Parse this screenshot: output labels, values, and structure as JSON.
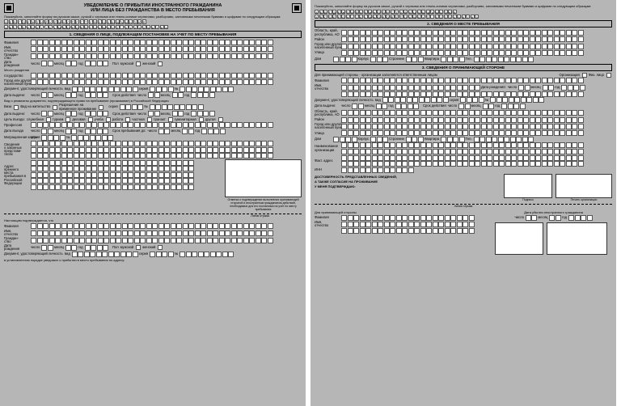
{
  "colors": {
    "page_bg": "#b6b6b6",
    "cell_bg": "#ffffff",
    "text": "#000000",
    "border": "#333333"
  },
  "page1": {
    "title_l1": "УВЕДОМЛЕНИЕ О ПРИБЫТИИ ИНОСТРАННОГО ГРАЖДАНИНА",
    "title_l2": "ИЛИ ЛИЦА БЕЗ ГРАЖДАНСТВА В МЕСТО ПРЕБЫВАНИЯ",
    "instr": "Пожалуйста, заполняйте форму на русском языке, ручкой с черными или темно-синими чернилами, разборчиво, заглавными печатными буквами и цифрами по следующим образцам:",
    "alphabet": "АБВГДЕЖЗИЙКЛМНОПРСТУФХЦЧШЩЪЫЬЭЮЯ",
    "alphabet2": "ABCDEFGHIJKLMNOPQRSTUVWXYZ 0123456789",
    "sec1": "1. СВЕДЕНИЯ О ЛИЦЕ, ПОДЛЕЖАЩЕМ ПОСТАНОВКЕ НА УЧЕТ ПО МЕСТУ ПРЕБЫВАНИЯ",
    "lbl": {
      "fam": "Фамилия",
      "name": "Имя,",
      "patr": "отчество",
      "citizen": "Граждан-",
      "citizen2": "ство",
      "bdate": "Дата",
      "bdate2": "рождения",
      "num": "число",
      "mon": "месяц",
      "year": "год",
      "sex": "Пол",
      "m": "мужской",
      "f": "женский",
      "bplace": "Место рождения",
      "country": "государство",
      "city": "Город или другой",
      "city2": "населенный пункт",
      "doc": "Документ, удостоверяющий личность",
      "vid": "вид",
      "ser": "серия",
      "no": "№",
      "issued": "Дата выдачи:",
      "valid": "Срок действия",
      "sec_doc": "Вид и реквизиты документа, подтверждающего право на пребывание (проживание) в Российской Федерации",
      "visa": "Виза",
      "rvp": "Вид на жительство",
      "rvp2": "Разрешение на",
      "rvp3": "временное проживание",
      "purpose": "Цель въезда:",
      "p1": "служебная",
      "p2": "туризм",
      "p3": "деловая",
      "p4": "учеба",
      "p5": "работа",
      "p6": "частная",
      "p7": "транзит",
      "p8": "гуманитарная",
      "p9": "другая",
      "prof": "Профессия",
      "darr": "Дата въезда",
      "dstay": "Срок пребывания до:",
      "migcard": "Миграционная карта",
      "serial": "серия",
      "prev": "Сведения",
      "prev2": "о законных",
      "prev3": "представи-",
      "prev4": "телях",
      "addr": "Адрес",
      "addr2": "прежнего",
      "addr3": "места",
      "addr4": "пребывания в",
      "addr5": "Российской",
      "addr6": "Федерации",
      "note": "Отметка о подтверждении выполнения принимающей стороной и иностранным гражданином действий, необходимых для его постановки на учет по месту пребывания",
      "cutline": "Линия отрыва",
      "decl": "Настоящим подтверждается, что",
      "est": "в установленном порядке уведомил о прибытии в место пребывания по адресу:"
    }
  },
  "page2": {
    "sec2": "2. СВЕДЕНИЯ О МЕСТЕ ПРЕБЫВАНИЯ",
    "sec3": "3. СВЕДЕНИЯ О ПРИНИМАЮЩЕЙ СТОРОНЕ",
    "lbl": {
      "region": "Область, край,",
      "region2": "республика, АО",
      "raion": "Район",
      "city": "Город или другой",
      "city2": "населенный пункт",
      "street": "Улица",
      "house": "Дом",
      "korp": "Корпус",
      "str": "Строение",
      "kv": "Квартира",
      "tel": "Тел.",
      "host_note": "Для принимающей стороны - организации заполняется ответственным лицом",
      "org": "Организация",
      "fiz": "Физ. лицо",
      "fam": "Фамилия",
      "name": "Имя,",
      "patr": "отчество",
      "bdate": "Дата рождения:",
      "num": "число",
      "mon": "месяц",
      "year": "год",
      "doc": "Документ, удостоверяющий личность",
      "vid": "вид",
      "ser": "серия",
      "no": "№",
      "issued": "Дата выдачи:",
      "valid": "Срок действия",
      "orgname": "Наименование",
      "orgname2": "организации",
      "factaddr": "Факт. адрес",
      "inn": "ИНН",
      "conf": "ДОСТОВЕРНОСТЬ ПРЕДСТАВЛЕННЫХ СВЕДЕНИЙ,",
      "conf2": "А ТАКЖЕ СОГЛАСИЕ НА ПРОЖИВАНИЕ",
      "conf3": "У МЕНЯ ПОДТВЕРЖДАЮ:",
      "sign": "Подпись",
      "stamp": "Печать организации",
      "cutline": "Линия отрыва",
      "recv": "Для принимающей стороны",
      "depart": "Дата убытия иностранного гражданина"
    }
  }
}
